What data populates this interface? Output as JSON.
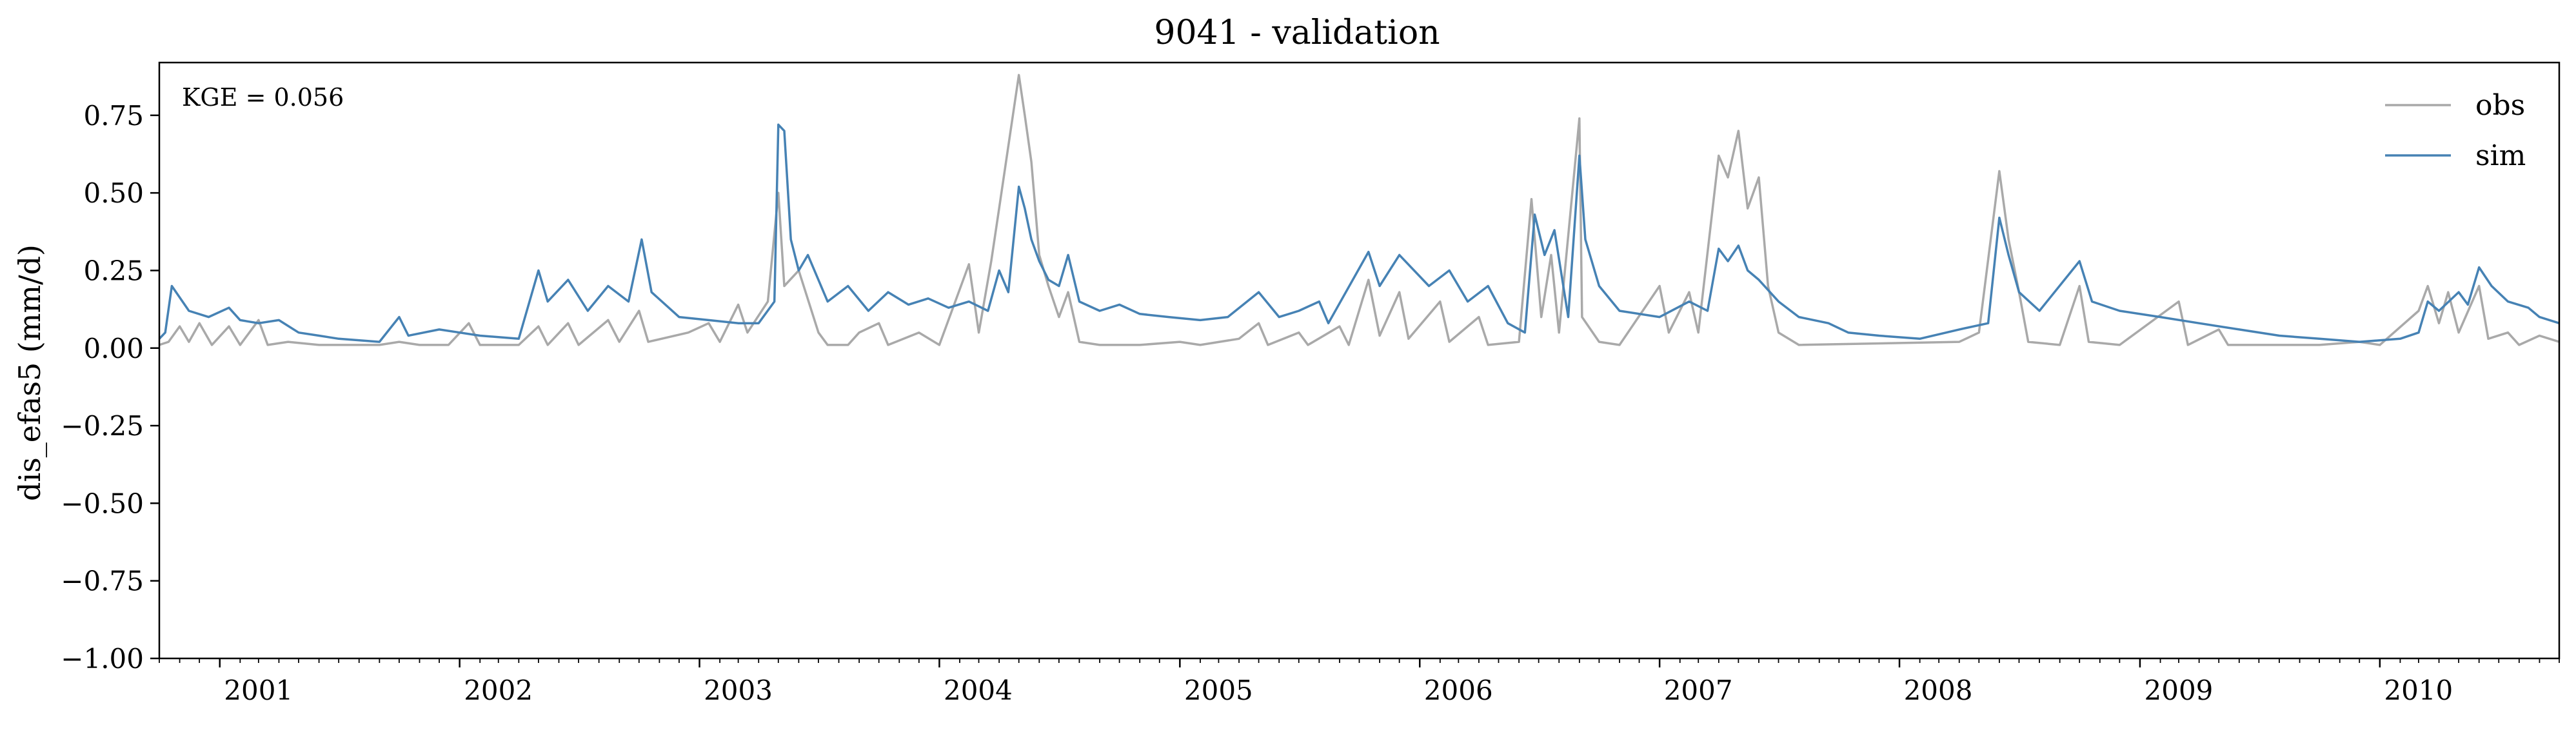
{
  "chart_data": {
    "type": "line",
    "title": "9041 - validation",
    "xlabel": "",
    "ylabel": "dis_efas5 (mm/d)",
    "annotation": "KGE = 0.056",
    "xlim": [
      "2000-10-01",
      "2010-10-01"
    ],
    "ylim": [
      -1.0,
      0.92
    ],
    "yticks": [
      0.75,
      0.5,
      0.25,
      0.0,
      -0.25,
      -0.5,
      -0.75,
      -1.0
    ],
    "ytick_labels": [
      "0.75",
      "0.50",
      "0.25",
      "0.00",
      "−0.25",
      "−0.50",
      "−0.75",
      "−1.00"
    ],
    "xtick_labels": [
      "2001",
      "2002",
      "2003",
      "2004",
      "2005",
      "2006",
      "2007",
      "2008",
      "2009",
      "2010"
    ],
    "legend_position": "top-right",
    "grid": false,
    "series": [
      {
        "name": "obs",
        "color": "#a9a9a9",
        "points": [
          [
            "2000-10-01",
            0.01
          ],
          [
            "2000-10-15",
            0.02
          ],
          [
            "2000-11-01",
            0.07
          ],
          [
            "2000-11-15",
            0.02
          ],
          [
            "2000-12-01",
            0.08
          ],
          [
            "2000-12-20",
            0.01
          ],
          [
            "2001-01-15",
            0.07
          ],
          [
            "2001-02-01",
            0.01
          ],
          [
            "2001-03-01",
            0.09
          ],
          [
            "2001-03-15",
            0.01
          ],
          [
            "2001-04-15",
            0.02
          ],
          [
            "2001-06-01",
            0.01
          ],
          [
            "2001-09-01",
            0.01
          ],
          [
            "2001-10-01",
            0.02
          ],
          [
            "2001-11-01",
            0.01
          ],
          [
            "2001-12-15",
            0.01
          ],
          [
            "2002-01-15",
            0.08
          ],
          [
            "2002-02-01",
            0.01
          ],
          [
            "2002-04-01",
            0.01
          ],
          [
            "2002-05-01",
            0.07
          ],
          [
            "2002-05-15",
            0.01
          ],
          [
            "2002-06-15",
            0.08
          ],
          [
            "2002-07-01",
            0.01
          ],
          [
            "2002-08-15",
            0.09
          ],
          [
            "2002-09-01",
            0.02
          ],
          [
            "2002-10-01",
            0.12
          ],
          [
            "2002-10-15",
            0.02
          ],
          [
            "2002-12-15",
            0.05
          ],
          [
            "2003-01-15",
            0.08
          ],
          [
            "2003-02-01",
            0.02
          ],
          [
            "2003-03-01",
            0.14
          ],
          [
            "2003-03-15",
            0.05
          ],
          [
            "2003-04-15",
            0.15
          ],
          [
            "2003-05-01",
            0.5
          ],
          [
            "2003-05-10",
            0.2
          ],
          [
            "2003-06-01",
            0.25
          ],
          [
            "2003-07-01",
            0.05
          ],
          [
            "2003-07-15",
            0.01
          ],
          [
            "2003-08-15",
            0.01
          ],
          [
            "2003-09-01",
            0.05
          ],
          [
            "2003-10-01",
            0.08
          ],
          [
            "2003-10-15",
            0.01
          ],
          [
            "2003-12-01",
            0.05
          ],
          [
            "2004-01-01",
            0.01
          ],
          [
            "2004-02-15",
            0.27
          ],
          [
            "2004-03-01",
            0.05
          ],
          [
            "2004-03-20",
            0.28
          ],
          [
            "2004-04-01",
            0.45
          ],
          [
            "2004-05-01",
            0.88
          ],
          [
            "2004-05-10",
            0.75
          ],
          [
            "2004-05-20",
            0.6
          ],
          [
            "2004-06-01",
            0.3
          ],
          [
            "2004-06-15",
            0.2
          ],
          [
            "2004-07-01",
            0.1
          ],
          [
            "2004-07-15",
            0.18
          ],
          [
            "2004-08-01",
            0.02
          ],
          [
            "2004-09-01",
            0.01
          ],
          [
            "2004-11-01",
            0.01
          ],
          [
            "2005-01-01",
            0.02
          ],
          [
            "2005-02-01",
            0.01
          ],
          [
            "2005-04-01",
            0.03
          ],
          [
            "2005-05-01",
            0.08
          ],
          [
            "2005-05-15",
            0.01
          ],
          [
            "2005-07-01",
            0.05
          ],
          [
            "2005-07-15",
            0.01
          ],
          [
            "2005-09-01",
            0.07
          ],
          [
            "2005-09-15",
            0.01
          ],
          [
            "2005-10-15",
            0.22
          ],
          [
            "2005-11-01",
            0.04
          ],
          [
            "2005-12-01",
            0.18
          ],
          [
            "2005-12-15",
            0.03
          ],
          [
            "2006-02-01",
            0.15
          ],
          [
            "2006-02-15",
            0.02
          ],
          [
            "2006-04-01",
            0.1
          ],
          [
            "2006-04-15",
            0.01
          ],
          [
            "2006-06-01",
            0.02
          ],
          [
            "2006-06-20",
            0.48
          ],
          [
            "2006-07-05",
            0.1
          ],
          [
            "2006-07-20",
            0.3
          ],
          [
            "2006-08-01",
            0.05
          ],
          [
            "2006-09-01",
            0.74
          ],
          [
            "2006-09-05",
            0.1
          ],
          [
            "2006-10-01",
            0.02
          ],
          [
            "2006-11-01",
            0.01
          ],
          [
            "2007-01-01",
            0.2
          ],
          [
            "2007-01-15",
            0.05
          ],
          [
            "2007-02-15",
            0.18
          ],
          [
            "2007-03-01",
            0.05
          ],
          [
            "2007-04-01",
            0.62
          ],
          [
            "2007-04-15",
            0.55
          ],
          [
            "2007-05-01",
            0.7
          ],
          [
            "2007-05-15",
            0.45
          ],
          [
            "2007-06-01",
            0.55
          ],
          [
            "2007-06-15",
            0.2
          ],
          [
            "2007-07-01",
            0.05
          ],
          [
            "2007-08-01",
            0.01
          ],
          [
            "2008-04-01",
            0.02
          ],
          [
            "2008-05-01",
            0.05
          ],
          [
            "2008-06-01",
            0.57
          ],
          [
            "2008-06-15",
            0.35
          ],
          [
            "2008-07-01",
            0.18
          ],
          [
            "2008-07-15",
            0.02
          ],
          [
            "2008-09-01",
            0.01
          ],
          [
            "2008-10-01",
            0.2
          ],
          [
            "2008-10-15",
            0.02
          ],
          [
            "2008-12-01",
            0.01
          ],
          [
            "2009-03-01",
            0.15
          ],
          [
            "2009-03-15",
            0.01
          ],
          [
            "2009-05-01",
            0.06
          ],
          [
            "2009-05-15",
            0.01
          ],
          [
            "2009-07-01",
            0.01
          ],
          [
            "2009-10-01",
            0.01
          ],
          [
            "2009-12-01",
            0.02
          ],
          [
            "2010-01-01",
            0.01
          ],
          [
            "2010-03-01",
            0.12
          ],
          [
            "2010-03-15",
            0.2
          ],
          [
            "2010-04-01",
            0.08
          ],
          [
            "2010-04-15",
            0.18
          ],
          [
            "2010-05-01",
            0.05
          ],
          [
            "2010-06-01",
            0.2
          ],
          [
            "2010-06-15",
            0.03
          ],
          [
            "2010-07-15",
            0.05
          ],
          [
            "2010-08-01",
            0.01
          ],
          [
            "2010-09-01",
            0.04
          ],
          [
            "2010-10-01",
            0.02
          ]
        ]
      },
      {
        "name": "sim",
        "color": "#4682b4",
        "points": [
          [
            "2000-10-01",
            0.03
          ],
          [
            "2000-10-10",
            0.05
          ],
          [
            "2000-10-20",
            0.2
          ],
          [
            "2000-11-15",
            0.12
          ],
          [
            "2000-12-15",
            0.1
          ],
          [
            "2001-01-15",
            0.13
          ],
          [
            "2001-02-01",
            0.09
          ],
          [
            "2001-03-01",
            0.08
          ],
          [
            "2001-04-01",
            0.09
          ],
          [
            "2001-05-01",
            0.05
          ],
          [
            "2001-06-01",
            0.04
          ],
          [
            "2001-07-01",
            0.03
          ],
          [
            "2001-09-01",
            0.02
          ],
          [
            "2001-10-01",
            0.1
          ],
          [
            "2001-10-15",
            0.04
          ],
          [
            "2001-12-01",
            0.06
          ],
          [
            "2002-01-01",
            0.05
          ],
          [
            "2002-02-01",
            0.04
          ],
          [
            "2002-04-01",
            0.03
          ],
          [
            "2002-05-01",
            0.25
          ],
          [
            "2002-05-15",
            0.15
          ],
          [
            "2002-06-15",
            0.22
          ],
          [
            "2002-07-15",
            0.12
          ],
          [
            "2002-08-15",
            0.2
          ],
          [
            "2002-09-15",
            0.15
          ],
          [
            "2002-10-05",
            0.35
          ],
          [
            "2002-10-20",
            0.18
          ],
          [
            "2002-12-01",
            0.1
          ],
          [
            "2003-01-15",
            0.09
          ],
          [
            "2003-03-01",
            0.08
          ],
          [
            "2003-04-01",
            0.08
          ],
          [
            "2003-04-25",
            0.15
          ],
          [
            "2003-05-01",
            0.72
          ],
          [
            "2003-05-10",
            0.7
          ],
          [
            "2003-05-20",
            0.35
          ],
          [
            "2003-06-01",
            0.25
          ],
          [
            "2003-06-15",
            0.3
          ],
          [
            "2003-07-15",
            0.15
          ],
          [
            "2003-08-15",
            0.2
          ],
          [
            "2003-09-15",
            0.12
          ],
          [
            "2003-10-15",
            0.18
          ],
          [
            "2003-11-15",
            0.14
          ],
          [
            "2003-12-15",
            0.16
          ],
          [
            "2004-01-15",
            0.13
          ],
          [
            "2004-02-15",
            0.15
          ],
          [
            "2004-03-15",
            0.12
          ],
          [
            "2004-04-01",
            0.25
          ],
          [
            "2004-04-15",
            0.18
          ],
          [
            "2004-05-01",
            0.52
          ],
          [
            "2004-05-10",
            0.45
          ],
          [
            "2004-05-20",
            0.35
          ],
          [
            "2004-06-01",
            0.28
          ],
          [
            "2004-06-15",
            0.22
          ],
          [
            "2004-07-01",
            0.2
          ],
          [
            "2004-07-15",
            0.3
          ],
          [
            "2004-08-01",
            0.15
          ],
          [
            "2004-09-01",
            0.12
          ],
          [
            "2004-10-01",
            0.14
          ],
          [
            "2004-11-01",
            0.11
          ],
          [
            "2004-12-15",
            0.1
          ],
          [
            "2005-02-01",
            0.09
          ],
          [
            "2005-03-15",
            0.1
          ],
          [
            "2005-05-01",
            0.18
          ],
          [
            "2005-06-01",
            0.1
          ],
          [
            "2005-07-01",
            0.12
          ],
          [
            "2005-08-01",
            0.15
          ],
          [
            "2005-08-15",
            0.08
          ],
          [
            "2005-10-15",
            0.31
          ],
          [
            "2005-11-01",
            0.2
          ],
          [
            "2005-12-01",
            0.3
          ],
          [
            "2006-01-15",
            0.2
          ],
          [
            "2006-02-15",
            0.25
          ],
          [
            "2006-03-15",
            0.15
          ],
          [
            "2006-04-15",
            0.2
          ],
          [
            "2006-05-15",
            0.08
          ],
          [
            "2006-06-10",
            0.05
          ],
          [
            "2006-06-25",
            0.43
          ],
          [
            "2006-07-10",
            0.3
          ],
          [
            "2006-07-25",
            0.38
          ],
          [
            "2006-08-15",
            0.1
          ],
          [
            "2006-09-01",
            0.62
          ],
          [
            "2006-09-10",
            0.35
          ],
          [
            "2006-10-01",
            0.2
          ],
          [
            "2006-11-01",
            0.12
          ],
          [
            "2007-01-01",
            0.1
          ],
          [
            "2007-02-15",
            0.15
          ],
          [
            "2007-03-15",
            0.12
          ],
          [
            "2007-04-01",
            0.32
          ],
          [
            "2007-04-15",
            0.28
          ],
          [
            "2007-05-01",
            0.33
          ],
          [
            "2007-05-15",
            0.25
          ],
          [
            "2007-06-01",
            0.22
          ],
          [
            "2007-07-01",
            0.15
          ],
          [
            "2007-08-01",
            0.1
          ],
          [
            "2007-09-15",
            0.08
          ],
          [
            "2007-10-15",
            0.05
          ],
          [
            "2007-12-01",
            0.04
          ],
          [
            "2008-02-01",
            0.03
          ],
          [
            "2008-04-01",
            0.06
          ],
          [
            "2008-05-15",
            0.08
          ],
          [
            "2008-06-01",
            0.42
          ],
          [
            "2008-06-15",
            0.3
          ],
          [
            "2008-07-01",
            0.18
          ],
          [
            "2008-08-01",
            0.12
          ],
          [
            "2008-10-01",
            0.28
          ],
          [
            "2008-10-20",
            0.15
          ],
          [
            "2008-12-01",
            0.12
          ],
          [
            "2009-02-01",
            0.1
          ],
          [
            "2009-04-01",
            0.08
          ],
          [
            "2009-06-01",
            0.06
          ],
          [
            "2009-08-01",
            0.04
          ],
          [
            "2009-10-01",
            0.03
          ],
          [
            "2009-12-01",
            0.02
          ],
          [
            "2010-02-01",
            0.03
          ],
          [
            "2010-03-01",
            0.05
          ],
          [
            "2010-03-15",
            0.15
          ],
          [
            "2010-04-01",
            0.12
          ],
          [
            "2010-05-01",
            0.18
          ],
          [
            "2010-05-15",
            0.14
          ],
          [
            "2010-06-01",
            0.26
          ],
          [
            "2010-06-20",
            0.2
          ],
          [
            "2010-07-15",
            0.15
          ],
          [
            "2010-08-15",
            0.13
          ],
          [
            "2010-09-01",
            0.1
          ],
          [
            "2010-10-01",
            0.08
          ]
        ]
      }
    ]
  }
}
